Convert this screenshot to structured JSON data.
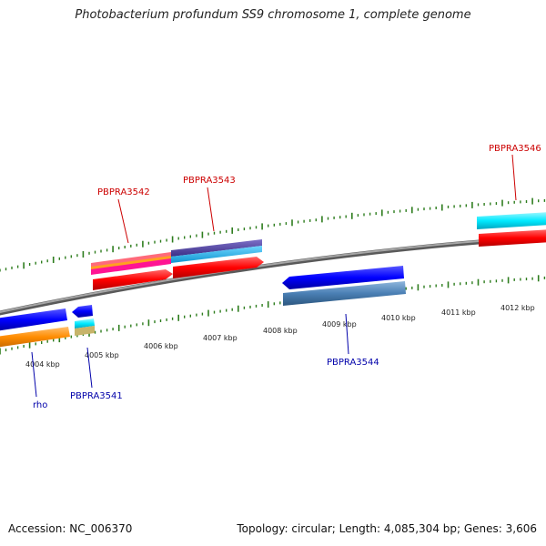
{
  "title": "Photobacterium profundum SS9 chromosome 1, complete genome",
  "footer": {
    "accession": "Accession: NC_006370",
    "topology": "Topology: circular; Length: 4,085,304 bp; Genes: 3,606"
  },
  "colors": {
    "backbone": "#8c8c8c",
    "tick": "#2e7d1e",
    "forward_label": "#cc0000",
    "reverse_label": "#0000aa"
  },
  "scale_labels": [
    "4004 kbp",
    "4005 kbp",
    "4006 kbp",
    "4007 kbp",
    "4008 kbp",
    "4009 kbp",
    "4010 kbp",
    "4011 kbp",
    "4012 kbp"
  ],
  "gene_labels": {
    "rho": "rho",
    "pbpra3541": "PBPRA3541",
    "pbpra3542": "PBPRA3542",
    "pbpra3543": "PBPRA3543",
    "pbpra3544": "PBPRA3544",
    "pbpra3546": "PBPRA3546"
  },
  "feature_colors": {
    "cds": "#ff0000",
    "gene": "#0000ff",
    "cyan": "#00e5ff",
    "sky": "#1ab2ee",
    "steel": "#4a7fb4",
    "orange": "#ff8c00",
    "pink": "#ff5577",
    "magenta": "#ff1493",
    "navy": "#4b3c9a",
    "khaki": "#c7b46a"
  }
}
